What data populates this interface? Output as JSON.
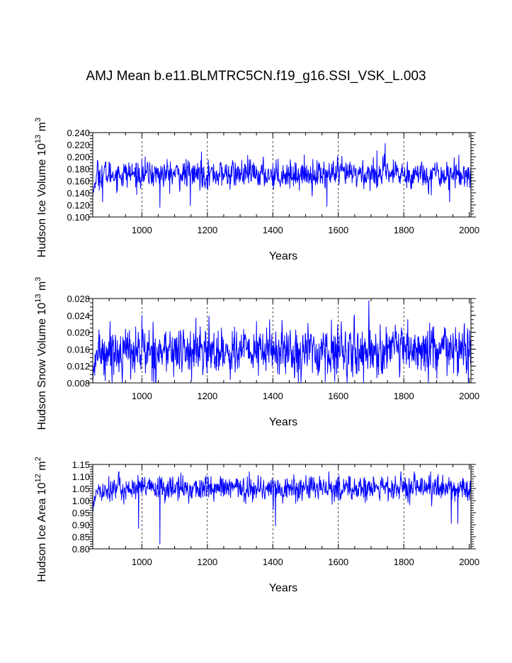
{
  "title": "AMJ Mean b.e11.BLMTRC5CN.f19_g16.SSI_VSK_L.003",
  "chart_data": [
    {
      "type": "line",
      "name": "ice-volume",
      "ylabel": {
        "main": "Hudson Ice Volume 10",
        "sup1": "13",
        "mid": " m",
        "sup2": "3"
      },
      "xlabel": "Years",
      "xlim": [
        850,
        2005
      ],
      "ylim": [
        0.1,
        0.24
      ],
      "xticks": [
        1000,
        1200,
        1400,
        1600,
        1800,
        2000
      ],
      "yticks": [
        0.1,
        0.12,
        0.14,
        0.16,
        0.18,
        0.2,
        0.22,
        0.24
      ],
      "ytick_labels": [
        "0.100",
        "0.120",
        "0.140",
        "0.160",
        "0.180",
        "0.200",
        "0.220",
        "0.240"
      ],
      "yminor": 0.005,
      "gridlines_x": [
        1000,
        1200,
        1400,
        1600,
        1800
      ],
      "line_color": "#0000ff",
      "series": {
        "name": "Hudson Ice Volume",
        "mean": 0.171,
        "std": 0.011,
        "min": 0.115,
        "max": 0.222,
        "start_dip": 0.135
      },
      "extremes": [
        [
          1743,
          0.222
        ],
        [
          1565,
          0.118
        ],
        [
          1055,
          0.116
        ],
        [
          1148,
          0.119
        ],
        [
          880,
          0.125
        ],
        [
          1940,
          0.125
        ],
        [
          1718,
          0.21
        ],
        [
          1182,
          0.208
        ]
      ]
    },
    {
      "type": "line",
      "name": "snow-volume",
      "ylabel": {
        "main": "Hudson Snow Volume 10",
        "sup1": "13",
        "mid": " m",
        "sup2": "3"
      },
      "xlabel": "Years",
      "xlim": [
        850,
        2005
      ],
      "ylim": [
        0.008,
        0.028
      ],
      "xticks": [
        1000,
        1200,
        1400,
        1600,
        1800,
        2000
      ],
      "yticks": [
        0.008,
        0.012,
        0.016,
        0.02,
        0.024,
        0.028
      ],
      "ytick_labels": [
        "0.008",
        "0.012",
        "0.016",
        "0.020",
        "0.024",
        "0.028"
      ],
      "yminor": 0.001,
      "gridlines_x": [
        1000,
        1200,
        1400,
        1600,
        1800
      ],
      "line_color": "#0000ff",
      "series": {
        "name": "Hudson Snow Volume",
        "mean": 0.0155,
        "std": 0.0028,
        "min": 0.008,
        "max": 0.0275,
        "start_dip": 0.0095
      },
      "extremes": [
        [
          1693,
          0.0275
        ],
        [
          1000,
          0.024
        ],
        [
          1390,
          0.023
        ],
        [
          1648,
          0.0232
        ],
        [
          1560,
          0.0083
        ],
        [
          888,
          0.0085
        ]
      ]
    },
    {
      "type": "line",
      "name": "ice-area",
      "ylabel": {
        "main": "Hudson Ice Area 10",
        "sup1": "12",
        "mid": " m",
        "sup2": "2"
      },
      "xlabel": "Years",
      "xlim": [
        850,
        2005
      ],
      "ylim": [
        0.8,
        1.15
      ],
      "xticks": [
        1000,
        1200,
        1400,
        1600,
        1800,
        2000
      ],
      "yticks": [
        0.8,
        0.85,
        0.9,
        0.95,
        1.0,
        1.05,
        1.1,
        1.15
      ],
      "ytick_labels": [
        "0.80",
        "0.85",
        "0.90",
        "0.95",
        "1.00",
        "1.05",
        "1.10",
        "1.15"
      ],
      "yminor": 0.01,
      "gridlines_x": [
        1000,
        1200,
        1400,
        1600,
        1800
      ],
      "line_color": "#0000ff",
      "series": {
        "name": "Hudson Ice Area",
        "mean": 1.05,
        "std": 0.025,
        "min": 0.82,
        "max": 1.12,
        "start_dip": 0.96
      },
      "extremes": [
        [
          1055,
          0.82
        ],
        [
          990,
          0.885
        ],
        [
          1408,
          0.895
        ],
        [
          1945,
          0.905
        ],
        [
          1965,
          0.905
        ],
        [
          1328,
          1.12
        ],
        [
          1882,
          1.12
        ]
      ]
    }
  ]
}
